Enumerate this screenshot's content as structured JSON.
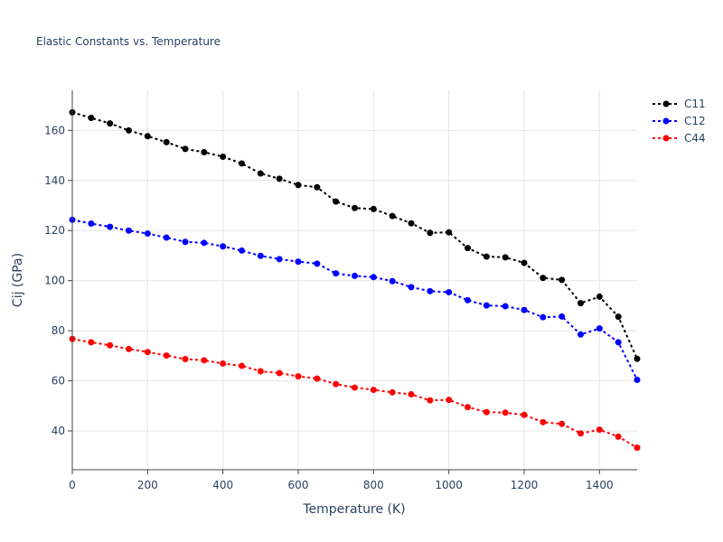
{
  "chart_data": {
    "type": "line",
    "title": "Elastic Constants vs. Temperature",
    "xlabel": "Temperature (K)",
    "ylabel": "Cij (GPa)",
    "xlim": [
      0,
      1500
    ],
    "ylim": [
      24.5,
      176
    ],
    "xticks": [
      0,
      200,
      400,
      600,
      800,
      1000,
      1200,
      1400
    ],
    "yticks": [
      40,
      60,
      80,
      100,
      120,
      140,
      160
    ],
    "grid": true,
    "legend_position": "top-right",
    "x": [
      0,
      50,
      100,
      150,
      200,
      250,
      300,
      350,
      400,
      450,
      500,
      550,
      600,
      650,
      700,
      750,
      800,
      850,
      900,
      950,
      1000,
      1050,
      1100,
      1150,
      1200,
      1250,
      1300,
      1350,
      1400,
      1450,
      1500
    ],
    "series": [
      {
        "name": "C11",
        "color": "#000000",
        "values": [
          167.2,
          165.0,
          162.8,
          160.0,
          157.7,
          155.3,
          152.6,
          151.3,
          149.5,
          146.8,
          142.8,
          140.7,
          138.2,
          137.3,
          131.6,
          129.0,
          128.6,
          125.8,
          122.9,
          119.1,
          119.3,
          113.0,
          109.6,
          109.3,
          107.1,
          101.1,
          100.3,
          91.0,
          93.6,
          85.6,
          68.8
        ]
      },
      {
        "name": "C12",
        "color": "#0000ff",
        "values": [
          124.3,
          122.8,
          121.5,
          120.0,
          118.8,
          117.2,
          115.5,
          115.1,
          113.7,
          112.0,
          109.9,
          108.6,
          107.6,
          106.8,
          102.9,
          101.9,
          101.4,
          99.8,
          97.4,
          95.8,
          95.4,
          92.2,
          90.1,
          89.8,
          88.3,
          85.4,
          85.7,
          78.5,
          80.9,
          75.4,
          60.4
        ]
      },
      {
        "name": "C44",
        "color": "#ff0000",
        "values": [
          76.7,
          75.4,
          74.2,
          72.7,
          71.5,
          70.1,
          68.7,
          68.2,
          66.9,
          66.0,
          63.8,
          63.1,
          61.8,
          60.9,
          58.7,
          57.3,
          56.4,
          55.4,
          54.6,
          52.2,
          52.4,
          49.5,
          47.5,
          47.3,
          46.4,
          43.5,
          42.8,
          39.0,
          40.5,
          37.7,
          33.3
        ]
      }
    ]
  }
}
